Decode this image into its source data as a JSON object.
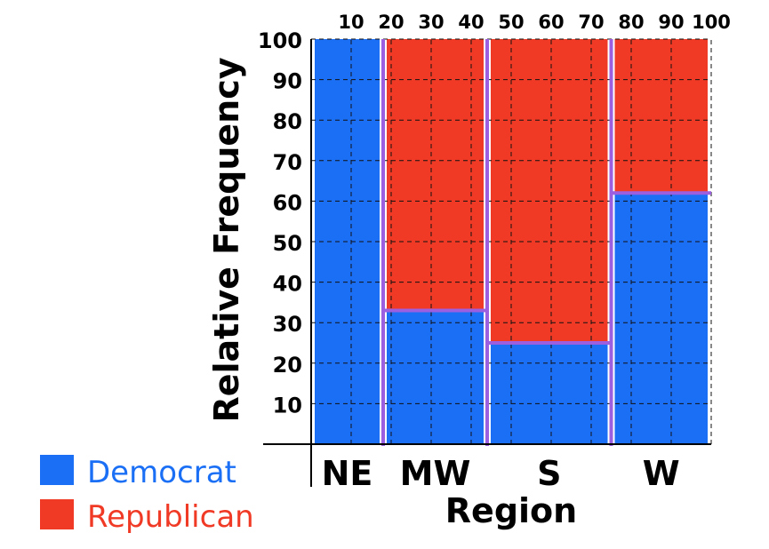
{
  "chart_data": {
    "type": "bar",
    "subtype": "mosaic",
    "title": "",
    "xlabel": "Region",
    "ylabel": "Relative Frequency",
    "categories": [
      "NE",
      "MW",
      "S",
      "W"
    ],
    "x_boundaries": [
      0,
      18,
      44,
      75,
      100
    ],
    "series": [
      {
        "name": "Democrat",
        "values": [
          100,
          33,
          25,
          62
        ]
      },
      {
        "name": "Republican",
        "values": [
          0,
          67,
          75,
          38
        ]
      }
    ],
    "ylim": [
      0,
      100
    ],
    "xlim": [
      0,
      100
    ],
    "y_ticks": [
      10,
      20,
      30,
      40,
      50,
      60,
      70,
      80,
      90,
      100
    ],
    "x_ticks": [
      10,
      20,
      30,
      40,
      50,
      60,
      70,
      80,
      90,
      100
    ],
    "grid": true,
    "legend": {
      "position": "bottom-left",
      "items": [
        {
          "label": "Democrat",
          "color": "#1a6ff5"
        },
        {
          "label": "Republican",
          "color": "#f03a25"
        }
      ]
    },
    "colors": {
      "democrat": "#1a6ff5",
      "republican": "#f03a25",
      "divider": "#9b5fe0"
    }
  }
}
